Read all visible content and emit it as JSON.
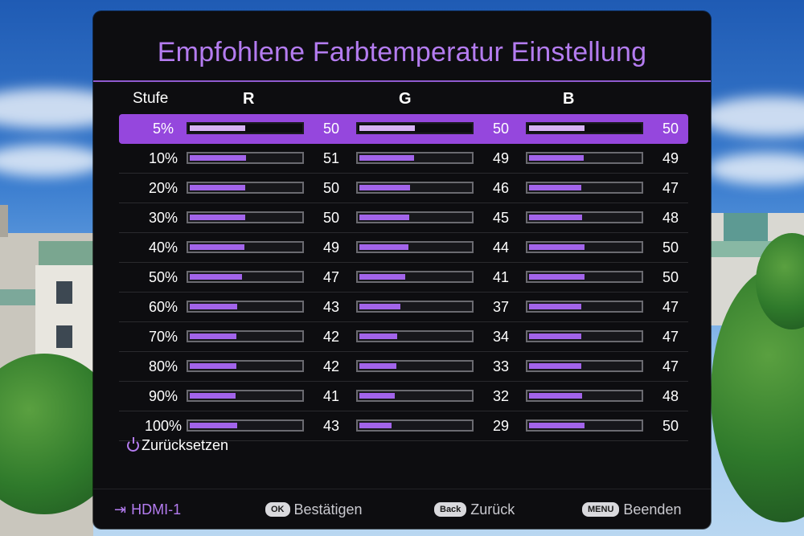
{
  "title": "Empfohlene Farbtemperatur Einstellung",
  "headers": {
    "stufe": "Stufe",
    "r": "R",
    "g": "G",
    "b": "B"
  },
  "rows": [
    {
      "stufe": "5%",
      "r": "50",
      "g": "50",
      "b": "50",
      "selected": true
    },
    {
      "stufe": "10%",
      "r": "51",
      "g": "49",
      "b": "49"
    },
    {
      "stufe": "20%",
      "r": "50",
      "g": "46",
      "b": "47"
    },
    {
      "stufe": "30%",
      "r": "50",
      "g": "45",
      "b": "48"
    },
    {
      "stufe": "40%",
      "r": "49",
      "g": "44",
      "b": "50"
    },
    {
      "stufe": "50%",
      "r": "47",
      "g": "41",
      "b": "50"
    },
    {
      "stufe": "60%",
      "r": "43",
      "g": "37",
      "b": "47"
    },
    {
      "stufe": "70%",
      "r": "42",
      "g": "34",
      "b": "47"
    },
    {
      "stufe": "80%",
      "r": "42",
      "g": "33",
      "b": "47"
    },
    {
      "stufe": "90%",
      "r": "41",
      "g": "32",
      "b": "48"
    },
    {
      "stufe": "100%",
      "r": "43",
      "g": "29",
      "b": "50"
    }
  ],
  "bar_max": 100,
  "reset_label": "Zurücksetzen",
  "footer": {
    "source": "HDMI-1",
    "ok_key": "OK",
    "ok_label": "Bestätigen",
    "back_key": "Back",
    "back_label": "Zurück",
    "menu_key": "MENU",
    "menu_label": "Beenden"
  },
  "colors": {
    "accent": "#b47cf0",
    "selected_row": "#9547dd",
    "bar_fill": "#a264ea",
    "bar_fill_selected": "#d6b2f2",
    "panel": "#0d0d10"
  },
  "icons": {
    "source": "input-arrow-icon",
    "reset": "reset-power-icon"
  }
}
